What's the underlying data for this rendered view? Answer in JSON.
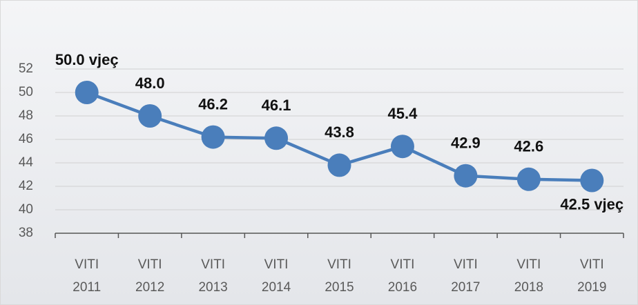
{
  "chart_data": {
    "type": "line",
    "categories": [
      "VITI 2011",
      "VITI 2012",
      "VITI 2013",
      "VITI 2014",
      "VITI 2015",
      "VITI 2016",
      "VITI 2017",
      "VITI 2018",
      "VITI 2019"
    ],
    "series": [
      {
        "color": "#4a7ebb",
        "values": [
          50.0,
          48.0,
          46.2,
          46.1,
          43.8,
          45.4,
          42.9,
          42.6,
          42.5
        ],
        "value_labels": [
          "50.0 vjeç",
          "48.0",
          "46.2",
          "46.1",
          "43.8",
          "45.4",
          "42.9",
          "42.6",
          "42.5 vjeç"
        ]
      }
    ],
    "ylim": [
      38,
      52
    ],
    "yticks": [
      38,
      40,
      42,
      44,
      46,
      48,
      50,
      52
    ],
    "grid": true
  }
}
